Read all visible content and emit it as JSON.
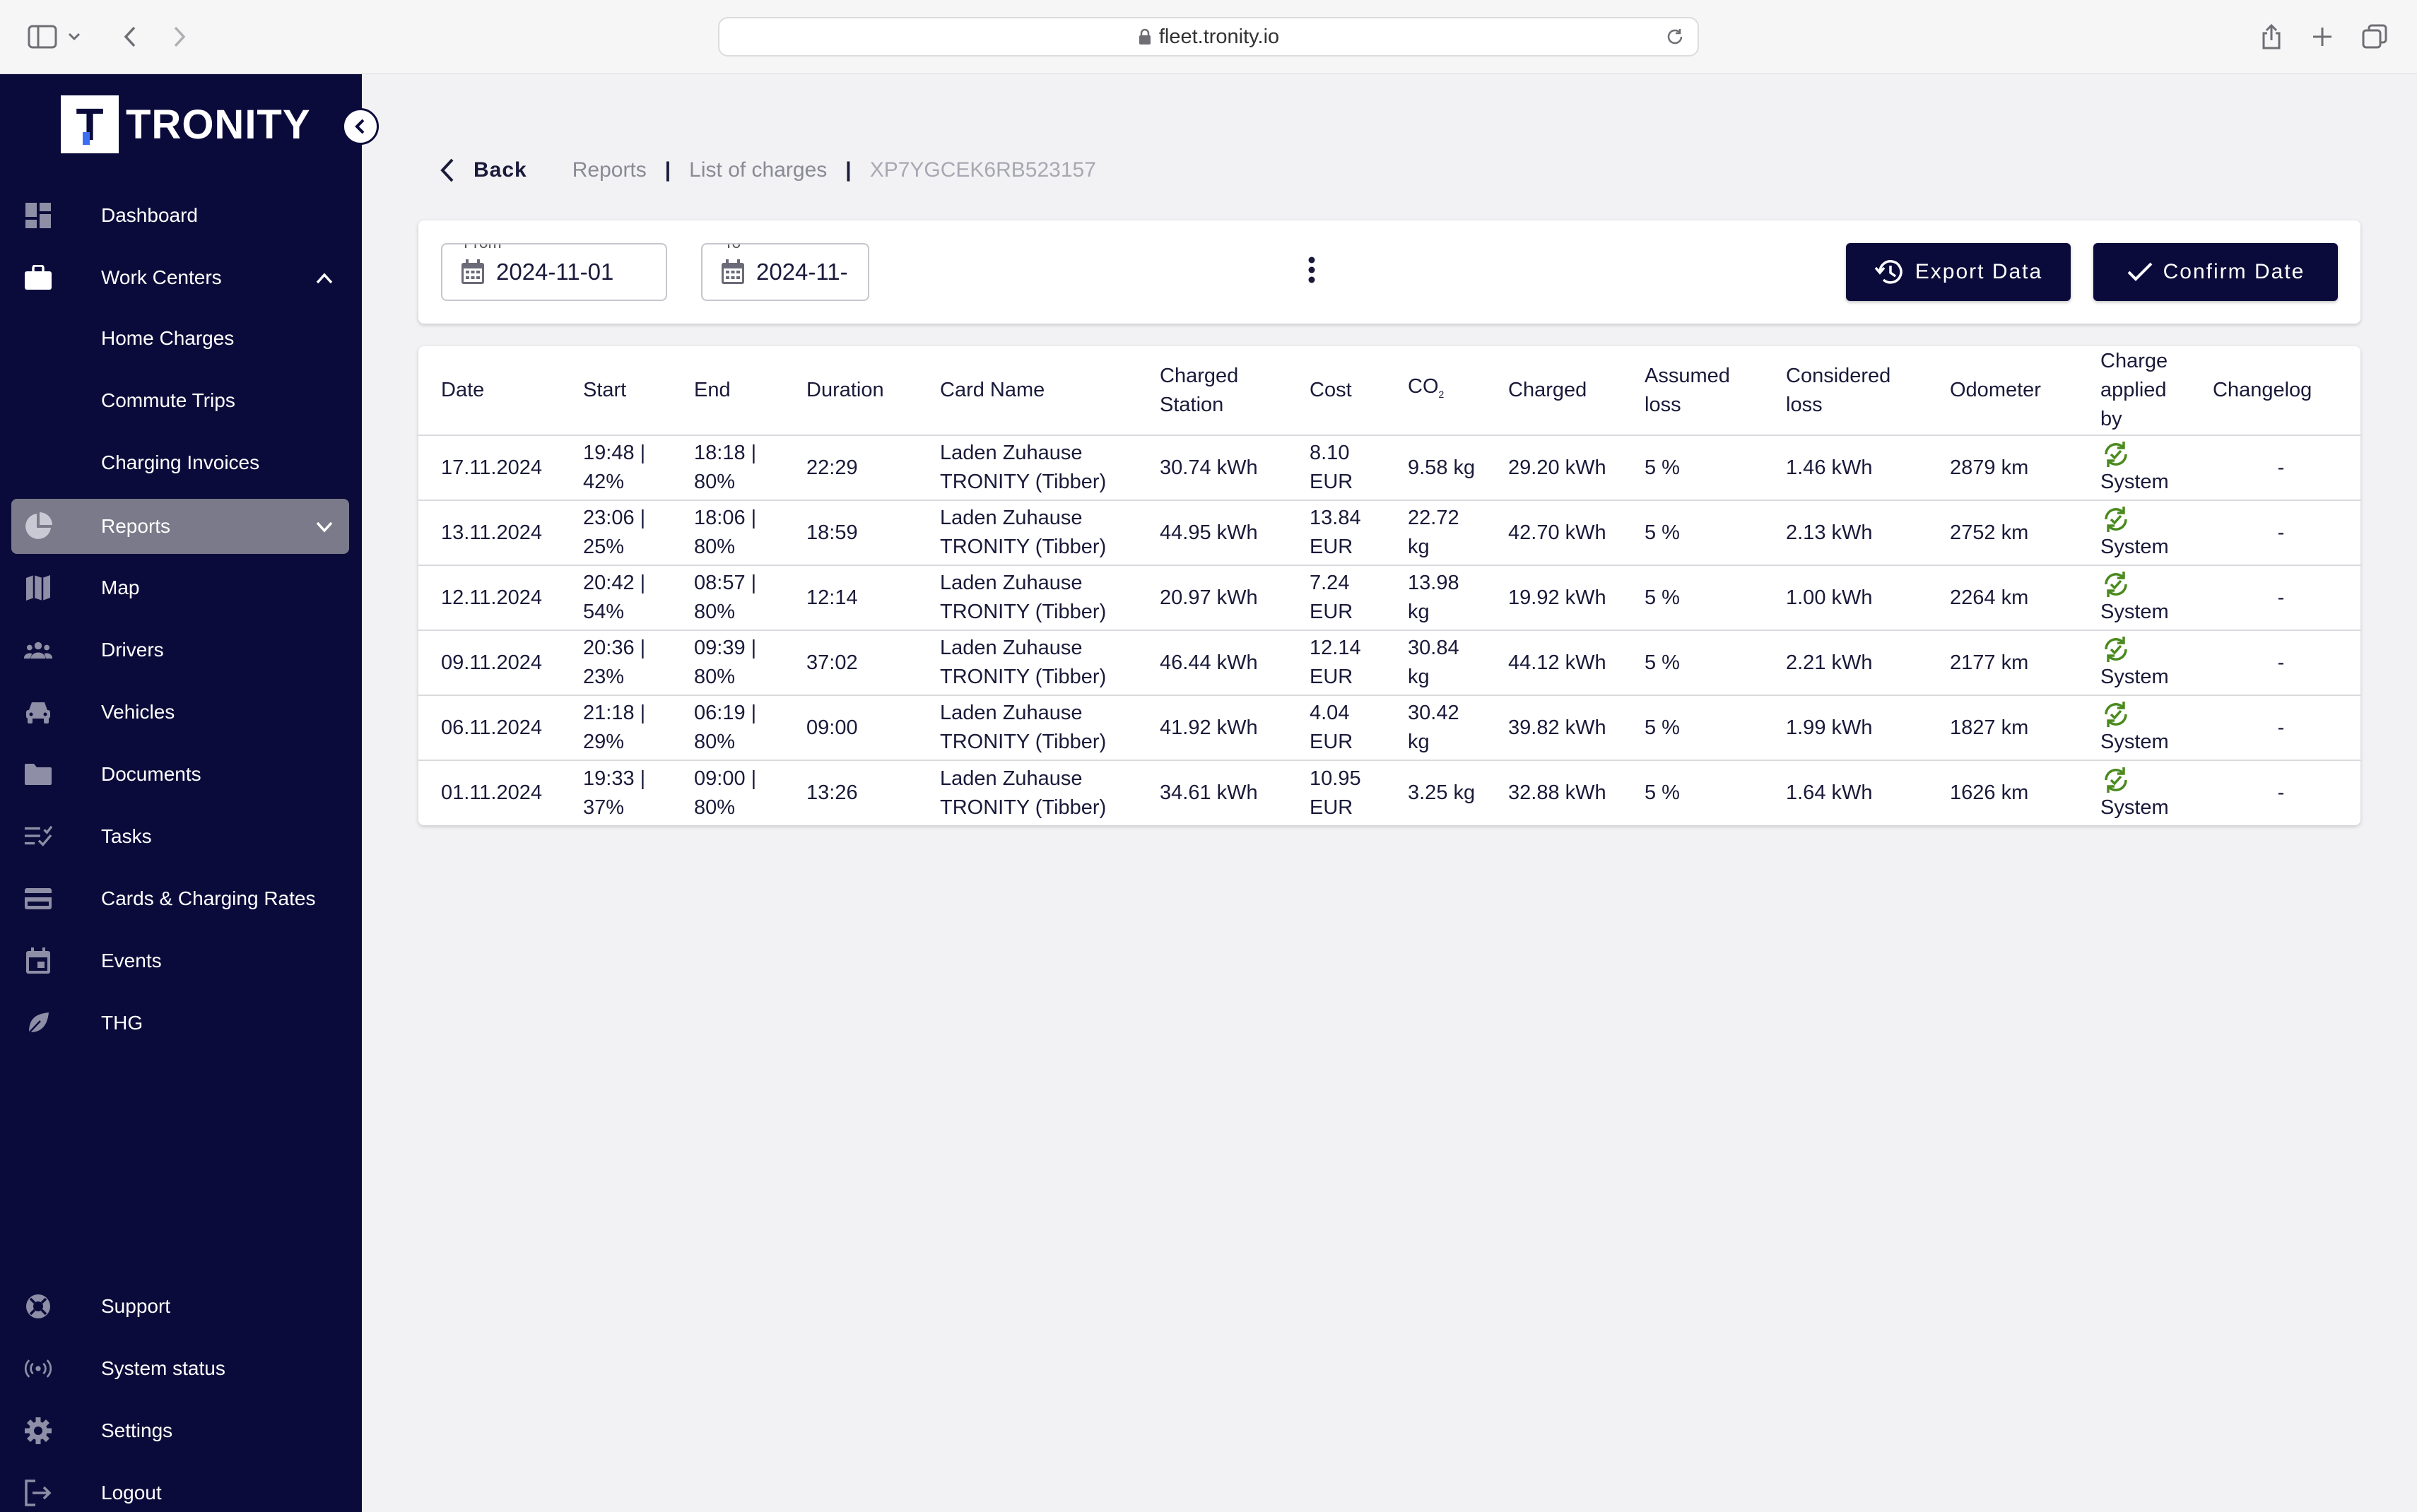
{
  "browser": {
    "url": "fleet.tronity.io"
  },
  "sidebar": {
    "logo_letter": "T",
    "logo_text": "TRONITY",
    "items": [
      {
        "label": "Dashboard",
        "icon": "dashboard-icon"
      },
      {
        "label": "Work Centers",
        "icon": "briefcase-icon"
      },
      {
        "label": "Reports",
        "icon": "pie-chart-icon"
      },
      {
        "label": "Map",
        "icon": "map-icon"
      },
      {
        "label": "Drivers",
        "icon": "people-icon"
      },
      {
        "label": "Vehicles",
        "icon": "car-icon"
      },
      {
        "label": "Documents",
        "icon": "folder-icon"
      },
      {
        "label": "Tasks",
        "icon": "checklist-icon"
      },
      {
        "label": "Cards & Charging Rates",
        "icon": "credit-card-icon"
      },
      {
        "label": "Events",
        "icon": "calendar-icon"
      },
      {
        "label": "THG",
        "icon": "leaf-icon"
      }
    ],
    "work_centers_sub": [
      "Home Charges",
      "Commute Trips",
      "Charging Invoices"
    ],
    "bottom_items": [
      {
        "label": "Support",
        "icon": "lifebuoy-icon"
      },
      {
        "label": "System status",
        "icon": "broadcast-icon"
      },
      {
        "label": "Settings",
        "icon": "gear-icon"
      },
      {
        "label": "Logout",
        "icon": "logout-icon"
      }
    ]
  },
  "breadcrumb": {
    "back": "Back",
    "reports": "Reports",
    "list": "List of charges",
    "vin": "XP7YGCEK6RB523157"
  },
  "filters": {
    "from_label": "From",
    "from_value": "2024-11-01",
    "to_label": "To",
    "to_value": "2024-11-",
    "export_label": "Export Data",
    "confirm_label": "Confirm Date"
  },
  "table": {
    "headers": {
      "date": "Date",
      "start": "Start",
      "end": "End",
      "duration": "Duration",
      "card_name": "Card Name",
      "charged_station": "Charged Station",
      "cost": "Cost",
      "co2": "CO",
      "co2_sub": "2",
      "charged": "Charged",
      "assumed_loss": "Assumed loss",
      "considered_loss": "Considered loss",
      "odometer": "Odometer",
      "applied_by": "Charge applied by",
      "changelog": "Changelog"
    },
    "rows": [
      {
        "date": "17.11.2024",
        "start": "19:48 | 42%",
        "end": "18:18 | 80%",
        "duration": "22:29",
        "card": "Laden Zuhause TRONITY (Tibber)",
        "station": "30.74 kWh",
        "cost": "8.10 EUR",
        "co2": "9.58 kg",
        "charged": "29.20 kWh",
        "assumed": "5 %",
        "considered": "1.46 kWh",
        "odometer": "2879 km",
        "applied": "System",
        "changelog": "-"
      },
      {
        "date": "13.11.2024",
        "start": "23:06 | 25%",
        "end": "18:06 | 80%",
        "duration": "18:59",
        "card": "Laden Zuhause TRONITY (Tibber)",
        "station": "44.95 kWh",
        "cost": "13.84 EUR",
        "co2": "22.72 kg",
        "charged": "42.70 kWh",
        "assumed": "5 %",
        "considered": "2.13 kWh",
        "odometer": "2752 km",
        "applied": "System",
        "changelog": "-"
      },
      {
        "date": "12.11.2024",
        "start": "20:42 | 54%",
        "end": "08:57 | 80%",
        "duration": "12:14",
        "card": "Laden Zuhause TRONITY (Tibber)",
        "station": "20.97 kWh",
        "cost": "7.24 EUR",
        "co2": "13.98 kg",
        "charged": "19.92 kWh",
        "assumed": "5 %",
        "considered": "1.00 kWh",
        "odometer": "2264 km",
        "applied": "System",
        "changelog": "-"
      },
      {
        "date": "09.11.2024",
        "start": "20:36 | 23%",
        "end": "09:39 | 80%",
        "duration": "37:02",
        "card": "Laden Zuhause TRONITY (Tibber)",
        "station": "46.44 kWh",
        "cost": "12.14 EUR",
        "co2": "30.84 kg",
        "charged": "44.12 kWh",
        "assumed": "5 %",
        "considered": "2.21 kWh",
        "odometer": "2177 km",
        "applied": "System",
        "changelog": "-"
      },
      {
        "date": "06.11.2024",
        "start": "21:18 | 29%",
        "end": "06:19 | 80%",
        "duration": "09:00",
        "card": "Laden Zuhause TRONITY (Tibber)",
        "station": "41.92 kWh",
        "cost": "4.04 EUR",
        "co2": "30.42 kg",
        "charged": "39.82 kWh",
        "assumed": "5 %",
        "considered": "1.99 kWh",
        "odometer": "1827 km",
        "applied": "System",
        "changelog": "-"
      },
      {
        "date": "01.11.2024",
        "start": "19:33 | 37%",
        "end": "09:00 | 80%",
        "duration": "13:26",
        "card": "Laden Zuhause TRONITY (Tibber)",
        "station": "34.61 kWh",
        "cost": "10.95 EUR",
        "co2": "3.25 kg",
        "charged": "32.88 kWh",
        "assumed": "5 %",
        "considered": "1.64 kWh",
        "odometer": "1626 km",
        "applied": "System",
        "changelog": "-"
      }
    ]
  },
  "colors": {
    "sidebar_bg": "#0b0b3b",
    "active_item_bg": "#7a7a8a",
    "system_icon": "#4a8a1e"
  }
}
